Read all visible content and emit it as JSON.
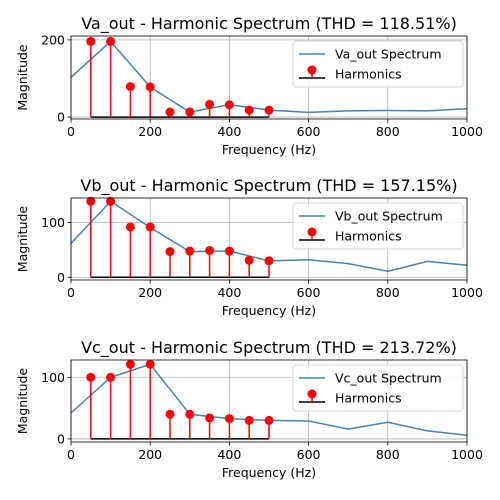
{
  "chart_data": [
    {
      "type": "line",
      "title": "Va_out - Harmonic Spectrum (THD = 118.51%)",
      "xlabel": "Frequency (Hz)",
      "ylabel": "Magnitude",
      "xlim": [
        0,
        1000
      ],
      "ylim": [
        -5,
        210
      ],
      "xticks": [
        0,
        200,
        400,
        600,
        800,
        1000
      ],
      "yticks": [
        0,
        200
      ],
      "grid": true,
      "legend_position": "top-right",
      "colors": {
        "spectrum": "#4682b4",
        "harmonics": "#ff0000",
        "baseline": "#000000"
      },
      "series": [
        {
          "name": "Va_out Spectrum",
          "x": [
            0,
            100,
            200,
            300,
            400,
            500,
            600,
            700,
            800,
            900,
            1000
          ],
          "y": [
            103,
            196,
            78,
            13,
            32,
            18,
            12,
            16,
            17,
            16,
            22
          ]
        },
        {
          "name": "Harmonics",
          "x": [
            50,
            100,
            150,
            200,
            250,
            300,
            350,
            400,
            450,
            500
          ],
          "y": [
            196,
            196,
            79,
            78,
            13,
            13,
            33,
            32,
            18,
            18
          ]
        }
      ]
    },
    {
      "type": "line",
      "title": "Vb_out - Harmonic Spectrum (THD = 157.15%)",
      "xlabel": "Frequency (Hz)",
      "ylabel": "Magnitude",
      "xlim": [
        0,
        1000
      ],
      "ylim": [
        -5,
        145
      ],
      "xticks": [
        0,
        200,
        400,
        600,
        800,
        1000
      ],
      "yticks": [
        0,
        100
      ],
      "grid": true,
      "legend_position": "top-right",
      "colors": {
        "spectrum": "#4682b4",
        "harmonics": "#ff0000",
        "baseline": "#000000"
      },
      "series": [
        {
          "name": "Vb_out Spectrum",
          "x": [
            0,
            100,
            200,
            300,
            400,
            500,
            600,
            700,
            800,
            900,
            1000
          ],
          "y": [
            62,
            139,
            91,
            47,
            48,
            30,
            32,
            25,
            11,
            29,
            22
          ]
        },
        {
          "name": "Harmonics",
          "x": [
            50,
            100,
            150,
            200,
            250,
            300,
            350,
            400,
            450,
            500
          ],
          "y": [
            139,
            139,
            92,
            92,
            47,
            48,
            49,
            48,
            31,
            30
          ]
        }
      ]
    },
    {
      "type": "line",
      "title": "Vc_out - Harmonic Spectrum (THD = 213.72%)",
      "xlabel": "Frequency (Hz)",
      "ylabel": "Magnitude",
      "xlim": [
        0,
        1000
      ],
      "ylim": [
        -5,
        128
      ],
      "xticks": [
        0,
        200,
        400,
        600,
        800,
        1000
      ],
      "yticks": [
        0,
        100
      ],
      "grid": true,
      "legend_position": "top-right",
      "colors": {
        "spectrum": "#4682b4",
        "harmonics": "#ff0000",
        "baseline": "#000000"
      },
      "series": [
        {
          "name": "Vc_out Spectrum",
          "x": [
            0,
            100,
            200,
            300,
            400,
            500,
            600,
            700,
            800,
            900,
            1000
          ],
          "y": [
            42,
            100,
            121,
            40,
            33,
            30,
            29,
            16,
            27,
            13,
            6
          ]
        },
        {
          "name": "Harmonics",
          "x": [
            50,
            100,
            150,
            200,
            250,
            300,
            350,
            400,
            450,
            500
          ],
          "y": [
            100,
            100,
            121,
            121,
            40,
            40,
            34,
            33,
            30,
            30
          ]
        }
      ]
    }
  ]
}
